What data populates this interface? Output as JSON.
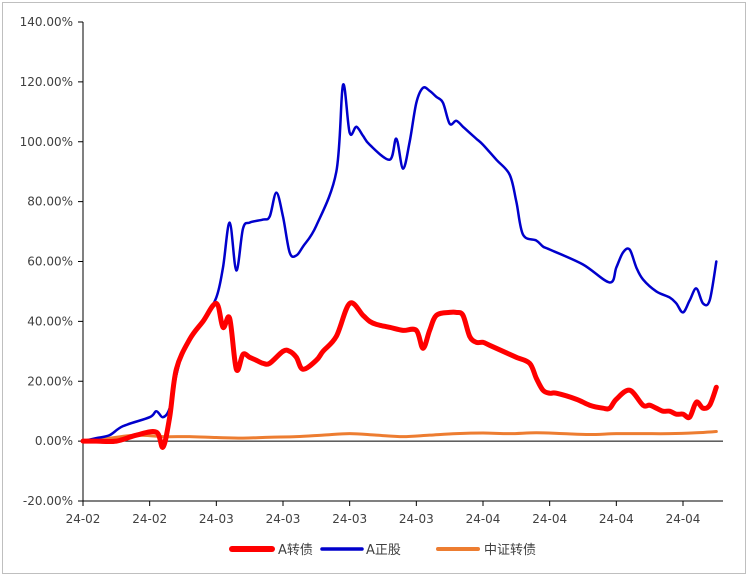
{
  "chart_data": {
    "type": "line",
    "title": "",
    "xlabel": "",
    "ylabel": "",
    "ylim": [
      -20,
      140
    ],
    "yticks": [
      -20,
      0,
      20,
      40,
      60,
      80,
      100,
      120,
      140
    ],
    "ytick_labels": [
      "-20.00%",
      "0.00%",
      "20.00%",
      "40.00%",
      "60.00%",
      "80.00%",
      "100.00%",
      "120.00%",
      "140.00%"
    ],
    "xticks": [
      0,
      10,
      20,
      30,
      40,
      50,
      60,
      70,
      80,
      90
    ],
    "xtick_labels": [
      "24-02",
      "24-02",
      "24-03",
      "24-03",
      "24-03",
      "24-03",
      "24-04",
      "24-04",
      "24-04",
      "24-04"
    ],
    "xlim": [
      0,
      96
    ],
    "grid": false,
    "legend_position": "bottom",
    "series": [
      {
        "name": "A转债",
        "color": "#ff0000",
        "x": [
          0,
          2,
          5,
          8,
          11,
          12,
          13,
          14,
          16,
          18,
          20,
          21,
          22,
          23,
          24,
          25,
          26,
          27,
          28,
          30,
          31,
          32,
          33,
          35,
          36,
          38,
          40,
          42,
          43,
          44,
          46,
          48,
          50,
          51,
          52,
          53,
          55,
          56,
          57,
          58,
          59,
          60,
          61,
          63,
          65,
          67,
          68,
          69,
          70,
          71,
          74,
          76,
          78,
          79,
          80,
          82,
          84,
          85,
          86,
          87,
          88,
          89,
          90,
          91,
          92,
          93,
          94,
          95
        ],
        "values": [
          0,
          0,
          0,
          2,
          3,
          -2,
          8,
          24,
          34,
          40,
          46,
          38,
          41,
          24,
          29,
          28,
          27,
          26,
          26,
          30,
          30,
          28,
          24,
          27,
          30,
          35,
          46,
          42,
          40,
          39,
          38,
          37,
          37,
          31,
          37,
          42,
          43,
          43,
          42,
          35,
          33,
          33,
          32,
          30,
          28,
          26,
          21,
          17,
          16,
          16,
          14,
          12,
          11,
          11,
          14,
          17,
          12,
          12,
          11,
          10,
          10,
          9,
          9,
          8,
          13,
          11,
          12,
          18
        ]
      },
      {
        "name": "A正股",
        "color": "#0000cc",
        "x": [
          0,
          2,
          4,
          6,
          10,
          11,
          12,
          13,
          14,
          15,
          16,
          18,
          20,
          21,
          22,
          23,
          24,
          25,
          27,
          28,
          29,
          30,
          31,
          32,
          33,
          35,
          38,
          39,
          40,
          41,
          42,
          43,
          46,
          47,
          48,
          49,
          50,
          51,
          52,
          53,
          54,
          55,
          56,
          57,
          58,
          59,
          60,
          62,
          64,
          65,
          66,
          68,
          69,
          70,
          75,
          79,
          80,
          81,
          82,
          83,
          84,
          86,
          88,
          89,
          90,
          91,
          92,
          93,
          94,
          95
        ],
        "values": [
          0,
          1,
          2,
          5,
          8,
          10,
          8,
          11,
          22,
          30,
          34,
          40,
          48,
          58,
          73,
          57,
          71,
          73,
          74,
          75,
          83,
          75,
          63,
          62,
          65,
          72,
          90,
          119,
          103,
          105,
          102,
          99,
          94,
          101,
          91,
          100,
          113,
          118,
          117,
          115,
          113,
          106,
          107,
          105,
          103,
          101,
          99,
          94,
          89,
          80,
          69,
          67,
          65,
          64,
          59,
          53,
          58,
          63,
          64,
          58,
          54,
          50,
          48,
          46,
          43,
          47,
          51,
          46,
          47,
          60
        ]
      },
      {
        "name": "中证转债",
        "color": "#ed7d31",
        "x": [
          0,
          4,
          8,
          12,
          16,
          20,
          24,
          28,
          32,
          36,
          40,
          44,
          48,
          52,
          56,
          60,
          64,
          68,
          72,
          76,
          80,
          84,
          88,
          92,
          95
        ],
        "values": [
          0,
          1,
          2,
          1.5,
          1.5,
          1.2,
          1,
          1.3,
          1.5,
          2,
          2.5,
          2,
          1.5,
          2,
          2.5,
          2.7,
          2.5,
          2.8,
          2.5,
          2.2,
          2.5,
          2.5,
          2.5,
          2.8,
          3.2
        ]
      }
    ]
  }
}
